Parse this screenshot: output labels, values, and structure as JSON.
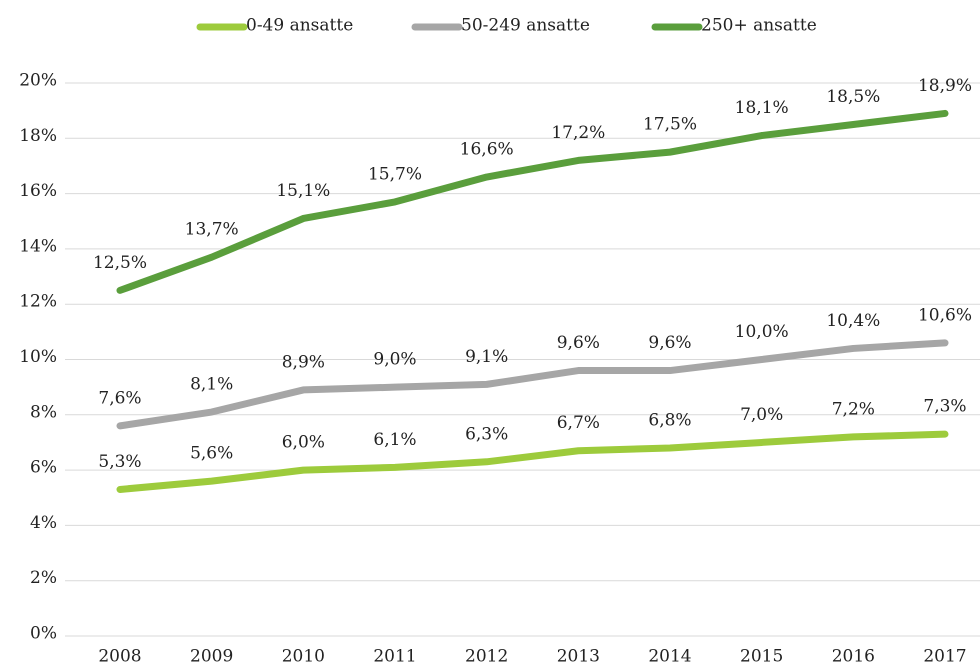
{
  "chart_data": {
    "type": "line",
    "categories": [
      "2008",
      "2009",
      "2010",
      "2011",
      "2012",
      "2013",
      "2014",
      "2015",
      "2016",
      "2017"
    ],
    "series": [
      {
        "name": "0-49 ansatte",
        "color": "#9dcb3c",
        "values": [
          5.3,
          5.6,
          6.0,
          6.1,
          6.3,
          6.7,
          6.8,
          7.0,
          7.2,
          7.3
        ],
        "value_labels": [
          "5,3%",
          "5,6%",
          "6,0%",
          "6,1%",
          "6,3%",
          "6,7%",
          "6,8%",
          "7,0%",
          "7,2%",
          "7,3%"
        ]
      },
      {
        "name": "50-249 ansatte",
        "color": "#a6a6a6",
        "values": [
          7.6,
          8.1,
          8.9,
          9.0,
          9.1,
          9.6,
          9.6,
          10.0,
          10.4,
          10.6
        ],
        "value_labels": [
          "7,6%",
          "8,1%",
          "8,9%",
          "9,0%",
          "9,1%",
          "9,6%",
          "9,6%",
          "10,0%",
          "10,4%",
          "10,6%"
        ]
      },
      {
        "name": "250+ ansatte",
        "color": "#5a9e3c",
        "values": [
          12.5,
          13.7,
          15.1,
          15.7,
          16.6,
          17.2,
          17.5,
          18.1,
          18.5,
          18.9
        ],
        "value_labels": [
          "12,5%",
          "13,7%",
          "15,1%",
          "15,7%",
          "16,6%",
          "17,2%",
          "17,5%",
          "18,1%",
          "18,5%",
          "18,9%"
        ]
      }
    ],
    "ylim": [
      0,
      20
    ],
    "yticks": [
      {
        "value": 0,
        "label": "0%"
      },
      {
        "value": 2,
        "label": "2%"
      },
      {
        "value": 4,
        "label": "4%"
      },
      {
        "value": 6,
        "label": "6%"
      },
      {
        "value": 8,
        "label": "8%"
      },
      {
        "value": 10,
        "label": "10%"
      },
      {
        "value": 12,
        "label": "12%"
      },
      {
        "value": 14,
        "label": "14%"
      },
      {
        "value": 16,
        "label": "16%"
      },
      {
        "value": 18,
        "label": "18%"
      },
      {
        "value": 20,
        "label": "20%"
      }
    ],
    "grid": true,
    "legend": "top"
  }
}
